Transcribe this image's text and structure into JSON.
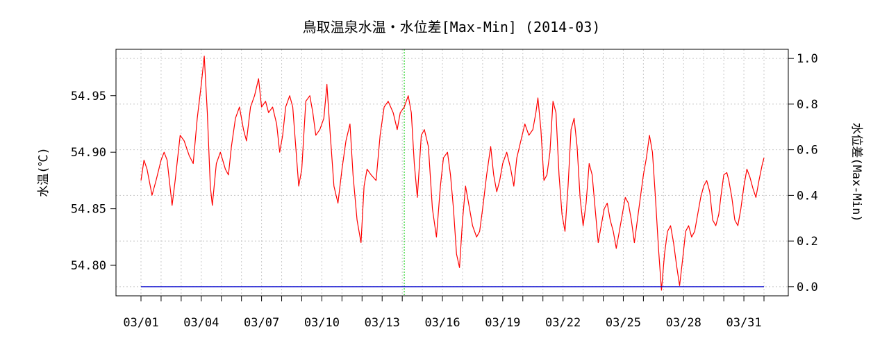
{
  "chart_data": {
    "type": "line",
    "title": "鳥取温泉水温・水位差[Max-Min] (2014-03)",
    "ylabel_left": "水温(℃)",
    "ylabel_right": "水位差(Max-Min)",
    "xlim": [
      0,
      31
    ],
    "ylim_left": [
      54.773,
      54.991
    ],
    "ylim_right": [
      -0.04,
      1.04
    ],
    "grid": true,
    "x_ticks": [
      0,
      1,
      2,
      3,
      4,
      5,
      6,
      7,
      8,
      9,
      10,
      11,
      12,
      13,
      14,
      15,
      16,
      17,
      18,
      19,
      20,
      21,
      22,
      23,
      24,
      25,
      26,
      27,
      28,
      29,
      30,
      31
    ],
    "x_tick_labels": [
      {
        "x": 0,
        "label": "03/01"
      },
      {
        "x": 3,
        "label": "03/04"
      },
      {
        "x": 6,
        "label": "03/07"
      },
      {
        "x": 9,
        "label": "03/10"
      },
      {
        "x": 12,
        "label": "03/13"
      },
      {
        "x": 15,
        "label": "03/16"
      },
      {
        "x": 18,
        "label": "03/19"
      },
      {
        "x": 21,
        "label": "03/22"
      },
      {
        "x": 24,
        "label": "03/25"
      },
      {
        "x": 27,
        "label": "03/28"
      },
      {
        "x": 30,
        "label": "03/31"
      }
    ],
    "y_left_ticks": [
      {
        "value": 54.8,
        "label": "54.80"
      },
      {
        "value": 54.85,
        "label": "54.85"
      },
      {
        "value": 54.9,
        "label": "54.90"
      },
      {
        "value": 54.95,
        "label": "54.95"
      }
    ],
    "y_right_ticks": [
      {
        "value": 0.0,
        "label": "0.0"
      },
      {
        "value": 0.2,
        "label": "0.2"
      },
      {
        "value": 0.4,
        "label": "0.4"
      },
      {
        "value": 0.6,
        "label": "0.6"
      },
      {
        "value": 0.8,
        "label": "0.8"
      },
      {
        "value": 1.0,
        "label": "1.0"
      }
    ],
    "marker_line": {
      "x": 13.1,
      "color": "#00cc00"
    },
    "series": [
      {
        "axis": "left",
        "color": "#ff0000",
        "points": [
          [
            0.0,
            54.875
          ],
          [
            0.15,
            54.893
          ],
          [
            0.3,
            54.885
          ],
          [
            0.55,
            54.862
          ],
          [
            0.75,
            54.875
          ],
          [
            1.0,
            54.893
          ],
          [
            1.15,
            54.9
          ],
          [
            1.3,
            54.893
          ],
          [
            1.55,
            54.853
          ],
          [
            1.7,
            54.875
          ],
          [
            1.95,
            54.915
          ],
          [
            2.15,
            54.91
          ],
          [
            2.4,
            54.897
          ],
          [
            2.6,
            54.89
          ],
          [
            2.8,
            54.93
          ],
          [
            3.0,
            54.96
          ],
          [
            3.15,
            54.985
          ],
          [
            3.3,
            54.935
          ],
          [
            3.45,
            54.87
          ],
          [
            3.55,
            54.853
          ],
          [
            3.75,
            54.89
          ],
          [
            3.95,
            54.9
          ],
          [
            4.2,
            54.885
          ],
          [
            4.35,
            54.88
          ],
          [
            4.5,
            54.905
          ],
          [
            4.7,
            54.93
          ],
          [
            4.9,
            54.94
          ],
          [
            5.1,
            54.92
          ],
          [
            5.25,
            54.91
          ],
          [
            5.45,
            54.94
          ],
          [
            5.65,
            54.95
          ],
          [
            5.85,
            54.965
          ],
          [
            6.0,
            54.94
          ],
          [
            6.2,
            54.945
          ],
          [
            6.35,
            54.935
          ],
          [
            6.55,
            54.94
          ],
          [
            6.75,
            54.925
          ],
          [
            6.9,
            54.9
          ],
          [
            7.05,
            54.915
          ],
          [
            7.2,
            54.94
          ],
          [
            7.4,
            54.95
          ],
          [
            7.55,
            54.94
          ],
          [
            7.7,
            54.905
          ],
          [
            7.85,
            54.87
          ],
          [
            8.0,
            54.885
          ],
          [
            8.2,
            54.945
          ],
          [
            8.4,
            54.95
          ],
          [
            8.55,
            54.935
          ],
          [
            8.7,
            54.915
          ],
          [
            8.9,
            54.92
          ],
          [
            9.1,
            54.93
          ],
          [
            9.25,
            54.96
          ],
          [
            9.4,
            54.92
          ],
          [
            9.6,
            54.87
          ],
          [
            9.8,
            54.855
          ],
          [
            10.0,
            54.885
          ],
          [
            10.2,
            54.91
          ],
          [
            10.4,
            54.925
          ],
          [
            10.55,
            54.88
          ],
          [
            10.75,
            54.84
          ],
          [
            10.95,
            54.82
          ],
          [
            11.1,
            54.87
          ],
          [
            11.25,
            54.885
          ],
          [
            11.45,
            54.88
          ],
          [
            11.7,
            54.875
          ],
          [
            11.9,
            54.915
          ],
          [
            12.1,
            54.94
          ],
          [
            12.3,
            54.945
          ],
          [
            12.55,
            54.935
          ],
          [
            12.75,
            54.92
          ],
          [
            12.9,
            54.935
          ],
          [
            13.1,
            54.94
          ],
          [
            13.3,
            54.95
          ],
          [
            13.45,
            54.935
          ],
          [
            13.6,
            54.89
          ],
          [
            13.75,
            54.86
          ],
          [
            13.95,
            54.915
          ],
          [
            14.1,
            54.92
          ],
          [
            14.3,
            54.905
          ],
          [
            14.5,
            54.85
          ],
          [
            14.7,
            54.825
          ],
          [
            14.9,
            54.87
          ],
          [
            15.05,
            54.895
          ],
          [
            15.25,
            54.9
          ],
          [
            15.4,
            54.88
          ],
          [
            15.55,
            54.85
          ],
          [
            15.7,
            54.81
          ],
          [
            15.85,
            54.798
          ],
          [
            16.0,
            54.84
          ],
          [
            16.15,
            54.87
          ],
          [
            16.35,
            54.85
          ],
          [
            16.5,
            54.835
          ],
          [
            16.7,
            54.825
          ],
          [
            16.85,
            54.83
          ],
          [
            17.0,
            54.85
          ],
          [
            17.2,
            54.88
          ],
          [
            17.4,
            54.905
          ],
          [
            17.55,
            54.88
          ],
          [
            17.7,
            54.865
          ],
          [
            17.85,
            54.875
          ],
          [
            18.0,
            54.89
          ],
          [
            18.2,
            54.9
          ],
          [
            18.4,
            54.885
          ],
          [
            18.55,
            54.87
          ],
          [
            18.7,
            54.895
          ],
          [
            18.9,
            54.91
          ],
          [
            19.1,
            54.925
          ],
          [
            19.3,
            54.915
          ],
          [
            19.5,
            54.92
          ],
          [
            19.65,
            54.935
          ],
          [
            19.75,
            54.948
          ],
          [
            19.9,
            54.92
          ],
          [
            20.05,
            54.875
          ],
          [
            20.2,
            54.88
          ],
          [
            20.35,
            54.9
          ],
          [
            20.5,
            54.945
          ],
          [
            20.65,
            54.935
          ],
          [
            20.8,
            54.88
          ],
          [
            20.95,
            54.845
          ],
          [
            21.1,
            54.83
          ],
          [
            21.25,
            54.87
          ],
          [
            21.4,
            54.92
          ],
          [
            21.55,
            54.93
          ],
          [
            21.7,
            54.905
          ],
          [
            21.85,
            54.86
          ],
          [
            22.0,
            54.835
          ],
          [
            22.15,
            54.855
          ],
          [
            22.3,
            54.89
          ],
          [
            22.45,
            54.88
          ],
          [
            22.6,
            54.85
          ],
          [
            22.75,
            54.82
          ],
          [
            22.9,
            54.835
          ],
          [
            23.05,
            54.85
          ],
          [
            23.2,
            54.855
          ],
          [
            23.35,
            54.84
          ],
          [
            23.5,
            54.83
          ],
          [
            23.65,
            54.815
          ],
          [
            23.8,
            54.83
          ],
          [
            23.95,
            54.845
          ],
          [
            24.1,
            54.86
          ],
          [
            24.25,
            54.855
          ],
          [
            24.4,
            54.84
          ],
          [
            24.55,
            54.82
          ],
          [
            24.7,
            54.84
          ],
          [
            24.85,
            54.86
          ],
          [
            25.0,
            54.88
          ],
          [
            25.15,
            54.895
          ],
          [
            25.3,
            54.915
          ],
          [
            25.45,
            54.9
          ],
          [
            25.6,
            54.86
          ],
          [
            25.75,
            54.815
          ],
          [
            25.9,
            54.778
          ],
          [
            26.05,
            54.81
          ],
          [
            26.2,
            54.83
          ],
          [
            26.35,
            54.835
          ],
          [
            26.5,
            54.82
          ],
          [
            26.65,
            54.8
          ],
          [
            26.8,
            54.782
          ],
          [
            26.95,
            54.805
          ],
          [
            27.1,
            54.83
          ],
          [
            27.25,
            54.835
          ],
          [
            27.4,
            54.825
          ],
          [
            27.55,
            54.83
          ],
          [
            27.7,
            54.845
          ],
          [
            27.85,
            54.86
          ],
          [
            28.0,
            54.87
          ],
          [
            28.15,
            54.875
          ],
          [
            28.3,
            54.865
          ],
          [
            28.45,
            54.84
          ],
          [
            28.6,
            54.835
          ],
          [
            28.75,
            54.845
          ],
          [
            28.85,
            54.86
          ],
          [
            29.0,
            54.88
          ],
          [
            29.15,
            54.882
          ],
          [
            29.25,
            54.875
          ],
          [
            29.4,
            54.86
          ],
          [
            29.55,
            54.84
          ],
          [
            29.7,
            54.835
          ],
          [
            29.85,
            54.85
          ],
          [
            30.0,
            54.87
          ],
          [
            30.15,
            54.885
          ],
          [
            30.3,
            54.878
          ],
          [
            30.45,
            54.868
          ],
          [
            30.6,
            54.86
          ],
          [
            30.75,
            54.875
          ],
          [
            30.9,
            54.888
          ],
          [
            31.0,
            54.895
          ]
        ]
      },
      {
        "axis": "right",
        "color": "#0000cc",
        "points": [
          [
            0,
            0.0
          ],
          [
            31,
            0.0
          ]
        ]
      }
    ]
  }
}
